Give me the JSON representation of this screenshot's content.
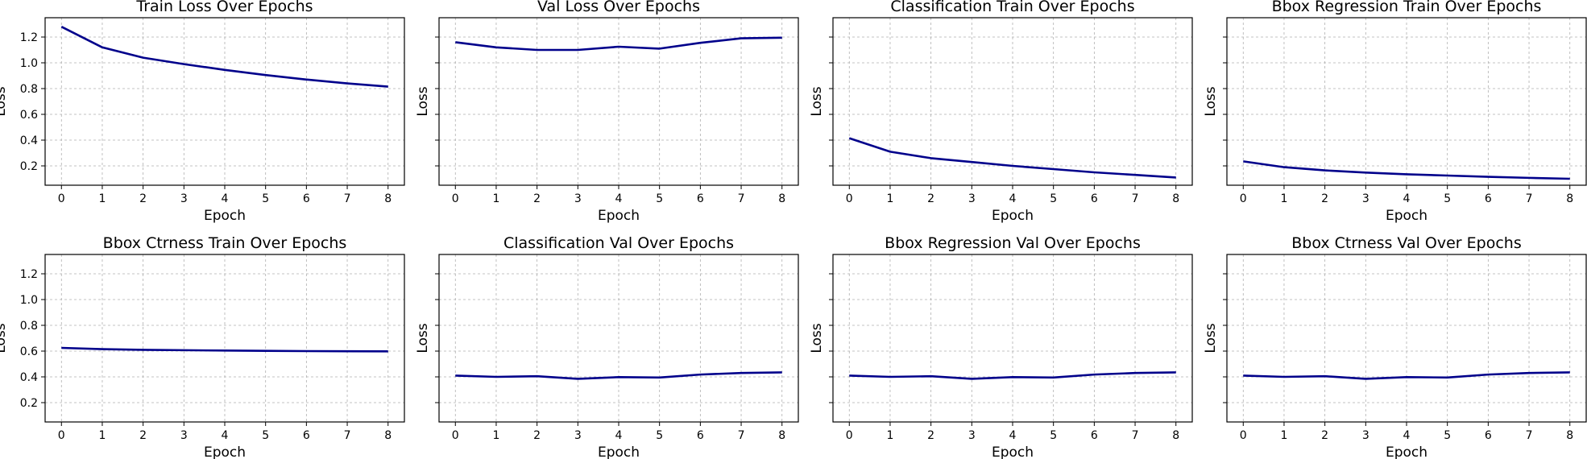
{
  "chart_data": [
    {
      "type": "line",
      "title": "Train Loss Over Epochs",
      "xlabel": "Epoch",
      "ylabel": "Loss",
      "x": [
        0,
        1,
        2,
        3,
        4,
        5,
        6,
        7,
        8
      ],
      "series": [
        {
          "values": [
            1.28,
            1.12,
            1.04,
            0.99,
            0.945,
            0.905,
            0.87,
            0.84,
            0.815
          ]
        }
      ],
      "ylim": [
        0.05,
        1.35
      ],
      "yticks": [
        "0.2",
        "0.4",
        "0.6",
        "0.8",
        "1.0",
        "1.2"
      ],
      "show_yticklabels": true,
      "grid": true,
      "color": "#00008b"
    },
    {
      "type": "line",
      "title": "Val Loss Over Epochs",
      "xlabel": "Epoch",
      "ylabel": "Loss",
      "x": [
        0,
        1,
        2,
        3,
        4,
        5,
        6,
        7,
        8
      ],
      "series": [
        {
          "values": [
            1.16,
            1.12,
            1.1,
            1.1,
            1.125,
            1.11,
            1.155,
            1.19,
            1.195
          ]
        }
      ],
      "ylim": [
        0.05,
        1.35
      ],
      "yticks": [
        "0.2",
        "0.4",
        "0.6",
        "0.8",
        "1.0",
        "1.2"
      ],
      "show_yticklabels": false,
      "grid": true,
      "color": "#00008b"
    },
    {
      "type": "line",
      "title": "Classification Train Over Epochs",
      "xlabel": "Epoch",
      "ylabel": "Loss",
      "x": [
        0,
        1,
        2,
        3,
        4,
        5,
        6,
        7,
        8
      ],
      "series": [
        {
          "values": [
            0.415,
            0.31,
            0.26,
            0.23,
            0.2,
            0.175,
            0.15,
            0.13,
            0.11
          ]
        }
      ],
      "ylim": [
        0.05,
        1.35
      ],
      "yticks": [
        "0.2",
        "0.4",
        "0.6",
        "0.8",
        "1.0",
        "1.2"
      ],
      "show_yticklabels": false,
      "grid": true,
      "color": "#00008b"
    },
    {
      "type": "line",
      "title": "Bbox Regression Train Over Epochs",
      "xlabel": "Epoch",
      "ylabel": "Loss",
      "x": [
        0,
        1,
        2,
        3,
        4,
        5,
        6,
        7,
        8
      ],
      "series": [
        {
          "values": [
            0.235,
            0.19,
            0.165,
            0.148,
            0.135,
            0.125,
            0.115,
            0.107,
            0.1
          ]
        }
      ],
      "ylim": [
        0.05,
        1.35
      ],
      "yticks": [
        "0.2",
        "0.4",
        "0.6",
        "0.8",
        "1.0",
        "1.2"
      ],
      "show_yticklabels": false,
      "grid": true,
      "color": "#00008b"
    },
    {
      "type": "line",
      "title": "Bbox Ctrness Train Over Epochs",
      "xlabel": "Epoch",
      "ylabel": "Loss",
      "x": [
        0,
        1,
        2,
        3,
        4,
        5,
        6,
        7,
        8
      ],
      "series": [
        {
          "values": [
            0.625,
            0.615,
            0.61,
            0.607,
            0.604,
            0.602,
            0.6,
            0.599,
            0.598
          ]
        }
      ],
      "ylim": [
        0.05,
        1.35
      ],
      "yticks": [
        "0.2",
        "0.4",
        "0.6",
        "0.8",
        "1.0",
        "1.2"
      ],
      "show_yticklabels": true,
      "grid": true,
      "color": "#00008b"
    },
    {
      "type": "line",
      "title": "Classification Val Over Epochs",
      "xlabel": "Epoch",
      "ylabel": "Loss",
      "x": [
        0,
        1,
        2,
        3,
        4,
        5,
        6,
        7,
        8
      ],
      "series": [
        {
          "values": [
            0.41,
            0.4,
            0.405,
            0.385,
            0.398,
            0.395,
            0.418,
            0.43,
            0.435
          ]
        }
      ],
      "ylim": [
        0.05,
        1.35
      ],
      "yticks": [
        "0.2",
        "0.4",
        "0.6",
        "0.8",
        "1.0",
        "1.2"
      ],
      "show_yticklabels": false,
      "grid": true,
      "color": "#00008b"
    },
    {
      "type": "line",
      "title": "Bbox Regression Val Over Epochs",
      "xlabel": "Epoch",
      "ylabel": "Loss",
      "x": [
        0,
        1,
        2,
        3,
        4,
        5,
        6,
        7,
        8
      ],
      "series": [
        {
          "values": [
            0.41,
            0.4,
            0.405,
            0.385,
            0.398,
            0.395,
            0.418,
            0.43,
            0.435
          ]
        }
      ],
      "ylim": [
        0.05,
        1.35
      ],
      "yticks": [
        "0.2",
        "0.4",
        "0.6",
        "0.8",
        "1.0",
        "1.2"
      ],
      "show_yticklabels": false,
      "grid": true,
      "color": "#00008b"
    },
    {
      "type": "line",
      "title": "Bbox Ctrness Val Over Epochs",
      "xlabel": "Epoch",
      "ylabel": "Loss",
      "x": [
        0,
        1,
        2,
        3,
        4,
        5,
        6,
        7,
        8
      ],
      "series": [
        {
          "values": [
            0.41,
            0.4,
            0.405,
            0.385,
            0.398,
            0.395,
            0.418,
            0.43,
            0.435
          ]
        }
      ],
      "ylim": [
        0.05,
        1.35
      ],
      "yticks": [
        "0.2",
        "0.4",
        "0.6",
        "0.8",
        "1.0",
        "1.2"
      ],
      "show_yticklabels": false,
      "grid": true,
      "color": "#00008b"
    }
  ]
}
